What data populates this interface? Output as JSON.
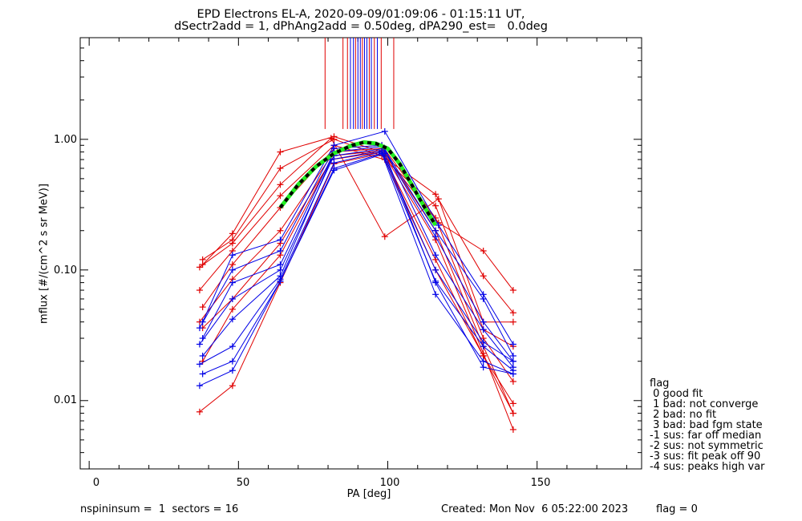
{
  "title_line1": "EPD Electrons EL-A, 2020-09-09/01:09:06 - 01:15:11 UT,",
  "title_line2": "dSectr2add = 1, dPhAng2add = 0.50deg, dPA290_est=   0.0deg",
  "footer_left": "nspininsum =  1  sectors = 16",
  "footer_created": "Created: Mon Nov  6 05:22:00 2023",
  "footer_flag": "flag = 0",
  "legend": {
    "title": "flag",
    "items": [
      " 0 good fit",
      " 1 bad: not converge",
      " 2 bad: no fit",
      " 3 bad: bad fgm state",
      "-1 sus: far off median",
      "-2 sus: not symmetric",
      "-3 sus: fit peak off 90",
      "-4 sus: peaks high var"
    ]
  },
  "colors": {
    "red": "#e00000",
    "blue": "#0000e6",
    "green": "#22ee22",
    "black": "#000000"
  },
  "chart_data": {
    "type": "line",
    "title": "EPD Electrons EL-A, 2020-09-09/01:09:06 - 01:15:11 UT,",
    "xlabel": "PA [deg]",
    "ylabel": "mflux [#/(cm^2 s sr MeV)]",
    "xlim": [
      -3,
      185
    ],
    "ylim": [
      0.003,
      6.0
    ],
    "yscale": "log",
    "x_ticks": [
      0,
      50,
      100,
      150
    ],
    "x_tick_labels": [
      "0",
      "50",
      "100",
      "150"
    ],
    "y_ticks": [
      0.01,
      0.1,
      1.0
    ],
    "y_tick_labels": [
      "0.01",
      "0.10",
      "1.00"
    ],
    "series": [
      {
        "color": "red",
        "points": [
          [
            38,
            0.11
          ],
          [
            48,
            0.19
          ],
          [
            64,
            0.8
          ],
          [
            82,
            1.05
          ],
          [
            98,
            0.8
          ],
          [
            117,
            0.23
          ],
          [
            132,
            0.14
          ],
          [
            142,
            0.07
          ]
        ]
      },
      {
        "color": "red",
        "points": [
          [
            38,
            0.12
          ],
          [
            48,
            0.17
          ],
          [
            64,
            0.6
          ],
          [
            82,
            1.0
          ],
          [
            98,
            0.75
          ],
          [
            116,
            0.38
          ],
          [
            132,
            0.09
          ],
          [
            142,
            0.047
          ]
        ]
      },
      {
        "color": "red",
        "points": [
          [
            37,
            0.105
          ],
          [
            48,
            0.16
          ],
          [
            64,
            0.45
          ],
          [
            81,
            1.02
          ],
          [
            99,
            0.18
          ],
          [
            117,
            0.35
          ],
          [
            132,
            0.04
          ],
          [
            142,
            0.04
          ]
        ]
      },
      {
        "color": "red",
        "points": [
          [
            37,
            0.07
          ],
          [
            48,
            0.14
          ],
          [
            64,
            0.37
          ],
          [
            82,
            0.9
          ],
          [
            99,
            0.7
          ],
          [
            116,
            0.31
          ],
          [
            132,
            0.035
          ],
          [
            142,
            0.026
          ]
        ]
      },
      {
        "color": "red",
        "points": [
          [
            38,
            0.052
          ],
          [
            48,
            0.11
          ],
          [
            64,
            0.3
          ],
          [
            82,
            0.85
          ],
          [
            98,
            0.9
          ],
          [
            116,
            0.25
          ],
          [
            132,
            0.03
          ],
          [
            142,
            0.014
          ]
        ]
      },
      {
        "color": "red",
        "points": [
          [
            37,
            0.04
          ],
          [
            48,
            0.085
          ],
          [
            64,
            0.2
          ],
          [
            82,
            0.8
          ],
          [
            98,
            0.85
          ],
          [
            116,
            0.2
          ],
          [
            132,
            0.026
          ],
          [
            142,
            0.008
          ]
        ]
      },
      {
        "color": "red",
        "points": [
          [
            38,
            0.036
          ],
          [
            48,
            0.06
          ],
          [
            64,
            0.16
          ],
          [
            82,
            0.75
          ],
          [
            98,
            0.82
          ],
          [
            116,
            0.17
          ],
          [
            132,
            0.023
          ],
          [
            142,
            0.006
          ]
        ]
      },
      {
        "color": "red",
        "points": [
          [
            38,
            0.02
          ],
          [
            48,
            0.05
          ],
          [
            64,
            0.13
          ],
          [
            81,
            0.7
          ],
          [
            98,
            0.8
          ],
          [
            116,
            0.12
          ],
          [
            132,
            0.022
          ],
          [
            142,
            0.008
          ]
        ]
      },
      {
        "color": "red",
        "points": [
          [
            37,
            0.0082
          ],
          [
            48,
            0.013
          ],
          [
            64,
            0.08
          ],
          [
            82,
            0.65
          ],
          [
            98,
            0.78
          ],
          [
            116,
            0.1
          ],
          [
            132,
            0.022
          ],
          [
            142,
            0.0095
          ]
        ]
      },
      {
        "color": "blue",
        "points": [
          [
            38,
            0.04
          ],
          [
            48,
            0.13
          ],
          [
            64,
            0.17
          ],
          [
            82,
            0.9
          ],
          [
            99,
            1.15
          ],
          [
            117,
            0.22
          ],
          [
            132,
            0.065
          ],
          [
            142,
            0.027
          ]
        ]
      },
      {
        "color": "blue",
        "points": [
          [
            37,
            0.036
          ],
          [
            48,
            0.1
          ],
          [
            64,
            0.14
          ],
          [
            82,
            0.85
          ],
          [
            98,
            0.9
          ],
          [
            116,
            0.2
          ],
          [
            132,
            0.06
          ],
          [
            142,
            0.022
          ]
        ]
      },
      {
        "color": "blue",
        "points": [
          [
            38,
            0.03
          ],
          [
            48,
            0.08
          ],
          [
            64,
            0.11
          ],
          [
            82,
            0.8
          ],
          [
            98,
            0.88
          ],
          [
            116,
            0.18
          ],
          [
            132,
            0.04
          ],
          [
            142,
            0.02
          ]
        ]
      },
      {
        "color": "blue",
        "points": [
          [
            37,
            0.027
          ],
          [
            48,
            0.06
          ],
          [
            64,
            0.1
          ],
          [
            82,
            0.75
          ],
          [
            99,
            0.85
          ],
          [
            116,
            0.13
          ],
          [
            132,
            0.035
          ],
          [
            142,
            0.018
          ]
        ]
      },
      {
        "color": "blue",
        "points": [
          [
            38,
            0.022
          ],
          [
            48,
            0.042
          ],
          [
            64,
            0.09
          ],
          [
            81,
            0.7
          ],
          [
            98,
            0.82
          ],
          [
            116,
            0.1
          ],
          [
            132,
            0.028
          ],
          [
            142,
            0.02
          ]
        ]
      },
      {
        "color": "blue",
        "points": [
          [
            37,
            0.019
          ],
          [
            48,
            0.026
          ],
          [
            64,
            0.085
          ],
          [
            82,
            0.66
          ],
          [
            98,
            0.8
          ],
          [
            116,
            0.082
          ],
          [
            132,
            0.026
          ],
          [
            142,
            0.017
          ]
        ]
      },
      {
        "color": "blue",
        "points": [
          [
            38,
            0.016
          ],
          [
            48,
            0.02
          ],
          [
            64,
            0.082
          ],
          [
            82,
            0.6
          ],
          [
            98,
            0.78
          ],
          [
            116,
            0.065
          ],
          [
            132,
            0.02
          ],
          [
            142,
            0.016
          ]
        ]
      },
      {
        "color": "blue",
        "points": [
          [
            37,
            0.013
          ],
          [
            48,
            0.017
          ],
          [
            64,
            0.082
          ],
          [
            82,
            0.58
          ],
          [
            99,
            0.78
          ],
          [
            116,
            0.08
          ],
          [
            132,
            0.018
          ],
          [
            142,
            0.016
          ]
        ]
      }
    ],
    "fit_curve": {
      "style": "green-black dashed",
      "points": [
        [
          64,
          0.3
        ],
        [
          70,
          0.45
        ],
        [
          76,
          0.62
        ],
        [
          82,
          0.78
        ],
        [
          88,
          0.9
        ],
        [
          92,
          0.95
        ],
        [
          96,
          0.93
        ],
        [
          100,
          0.85
        ],
        [
          104,
          0.65
        ],
        [
          108,
          0.45
        ],
        [
          112,
          0.31
        ],
        [
          116,
          0.22
        ]
      ]
    },
    "vertical_lines": {
      "ymin": 1.2,
      "lines": [
        {
          "x": 79,
          "color": "red"
        },
        {
          "x": 85,
          "color": "red"
        },
        {
          "x": 86.5,
          "color": "red"
        },
        {
          "x": 87.5,
          "color": "blue"
        },
        {
          "x": 88.5,
          "color": "blue"
        },
        {
          "x": 89.2,
          "color": "red"
        },
        {
          "x": 90,
          "color": "blue"
        },
        {
          "x": 90.8,
          "color": "blue"
        },
        {
          "x": 91.5,
          "color": "red"
        },
        {
          "x": 92.2,
          "color": "blue"
        },
        {
          "x": 93,
          "color": "blue"
        },
        {
          "x": 93.8,
          "color": "red"
        },
        {
          "x": 94.5,
          "color": "blue"
        },
        {
          "x": 95.5,
          "color": "red"
        },
        {
          "x": 96.5,
          "color": "blue"
        },
        {
          "x": 97.8,
          "color": "red"
        },
        {
          "x": 102,
          "color": "red"
        }
      ]
    }
  }
}
